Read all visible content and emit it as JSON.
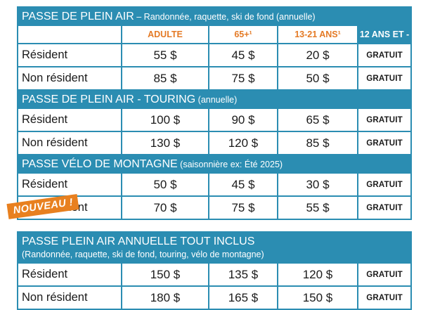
{
  "sections": [
    {
      "title": "PASSE DE PLEIN AIR",
      "subtitle": " – Randonnée, raquette, ski de fond (annuelle)",
      "rows": [
        {
          "label": "Résident",
          "values": [
            "55 $",
            "45 $",
            "20 $"
          ],
          "free": "GRATUIT"
        },
        {
          "label": "Non résident",
          "values": [
            "85 $",
            "75 $",
            "50 $"
          ],
          "free": "GRATUIT"
        }
      ]
    },
    {
      "title": "PASSE DE PLEIN AIR - TOURING",
      "subtitle": " (annuelle)",
      "rows": [
        {
          "label": "Résident",
          "values": [
            "100 $",
            "90 $",
            "65 $"
          ],
          "free": "GRATUIT"
        },
        {
          "label": "Non résident",
          "values": [
            "130 $",
            "120 $",
            "85 $"
          ],
          "free": "GRATUIT"
        }
      ]
    },
    {
      "title": "PASSE VÉLO DE MONTAGNE",
      "subtitle": " (saisonnière ex: Été 2025)",
      "rows": [
        {
          "label": "Résident",
          "values": [
            "50 $",
            "45 $",
            "30 $"
          ],
          "free": "GRATUIT"
        },
        {
          "label": "Non résident",
          "values": [
            "70 $",
            "75 $",
            "55 $"
          ],
          "free": "GRATUIT"
        }
      ]
    },
    {
      "title": "PASSE PLEIN AIR ANNUELLE  TOUT INCLUS",
      "subtitle": "(Randonnée, raquette, ski de fond, touring,  vélo de montagne)",
      "rows": [
        {
          "label": "Résident",
          "values": [
            "150 $",
            "135 $",
            "120 $"
          ],
          "free": "GRATUIT"
        },
        {
          "label": "Non résident",
          "values": [
            "180 $",
            "165 $",
            "150 $"
          ],
          "free": "GRATUIT"
        }
      ]
    }
  ],
  "columns": {
    "adult": "ADULTE",
    "senior": "65+¹",
    "youth": "13-21 ANS¹",
    "child": "12 ANS ET -"
  },
  "badge": "NOUVEAU !",
  "colors": {
    "accent": "#2b8db2",
    "orange": "#e47a25"
  }
}
